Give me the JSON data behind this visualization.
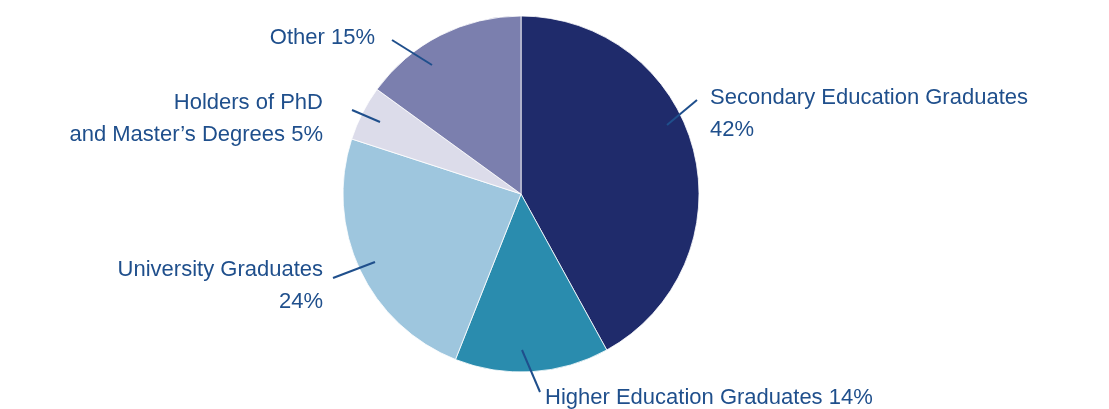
{
  "chart_data": {
    "type": "pie",
    "categories": [
      "Secondary Education Graduates",
      "Higher Education Graduates",
      "University Graduates",
      "Holders of PhD and Master’s Degrees",
      "Other"
    ],
    "values": [
      42,
      14,
      24,
      5,
      15
    ],
    "value_labels": [
      "42%",
      "14%",
      "24%",
      "5%",
      "15%"
    ],
    "colors": [
      "#1f2b6b",
      "#2a8cae",
      "#9ec6de",
      "#dcdcea",
      "#7b7fae"
    ]
  }
}
